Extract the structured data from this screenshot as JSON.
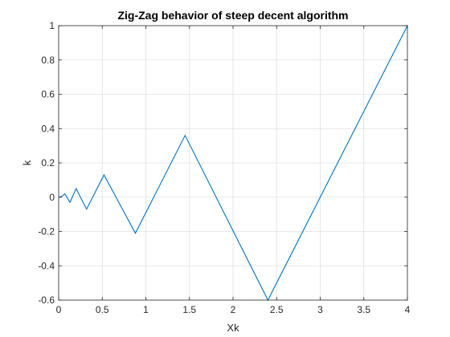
{
  "chart_data": {
    "type": "line",
    "title": "Zig-Zag behavior of steep decent algorithm",
    "xlabel": "Xk",
    "ylabel": "k",
    "xlim": [
      0,
      4
    ],
    "ylim": [
      -0.6,
      1
    ],
    "xticks": [
      0,
      0.5,
      1,
      1.5,
      2,
      2.5,
      3,
      3.5,
      4
    ],
    "xtick_labels": [
      "0",
      "0.5",
      "1",
      "1.5",
      "2",
      "2.5",
      "3",
      "3.5",
      "4"
    ],
    "yticks": [
      -0.6,
      -0.4,
      -0.2,
      0,
      0.2,
      0.4,
      0.6,
      0.8,
      1
    ],
    "ytick_labels": [
      "-0.6",
      "-0.4",
      "-0.2",
      "0",
      "0.2",
      "0.4",
      "0.6",
      "0.8",
      "1"
    ],
    "grid": true,
    "series": [
      {
        "color": "#0072BD",
        "x": [
          0,
          0.04,
          0.07,
          0.13,
          0.2,
          0.32,
          0.52,
          0.88,
          1.45,
          2.4,
          4.0
        ],
        "y": [
          0,
          0.005,
          0.02,
          -0.03,
          0.05,
          -0.07,
          0.13,
          -0.21,
          0.36,
          -0.6,
          1.0
        ]
      }
    ]
  }
}
